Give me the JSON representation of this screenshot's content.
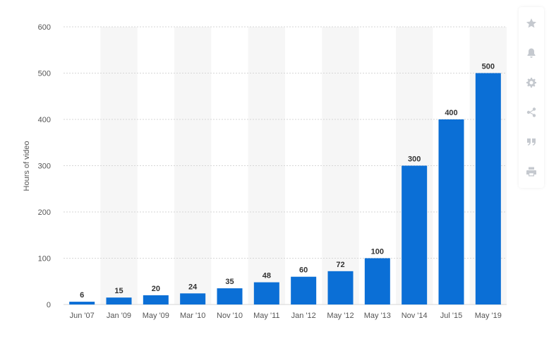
{
  "colors": {
    "bar": "#0b6fd6",
    "band": "#f6f6f6",
    "grid": "#d6d6d6",
    "axis_text": "#555555",
    "value_text": "#333333",
    "icon": "#c5c9cf"
  },
  "toolbar": {
    "icons": [
      "star-icon",
      "bell-icon",
      "gear-icon",
      "share-icon",
      "quote-icon",
      "print-icon"
    ]
  },
  "chart_data": {
    "type": "bar",
    "title": "",
    "xlabel": "",
    "ylabel": "Hours of video",
    "ylim": [
      0,
      600
    ],
    "yticks": [
      0,
      100,
      200,
      300,
      400,
      500,
      600
    ],
    "grid": true,
    "categories": [
      "Jun '07",
      "Jan '09",
      "May '09",
      "Mar '10",
      "Nov '10",
      "May '11",
      "Jan '12",
      "May '12",
      "May '13",
      "Nov '14",
      "Jul '15",
      "May '19"
    ],
    "values": [
      6,
      15,
      20,
      24,
      35,
      48,
      60,
      72,
      100,
      300,
      400,
      500
    ],
    "data_labels": [
      "6",
      "15",
      "20",
      "24",
      "35",
      "48",
      "60",
      "72",
      "100",
      "300",
      "400",
      "500"
    ]
  }
}
